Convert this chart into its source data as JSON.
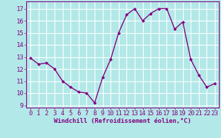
{
  "x": [
    0,
    1,
    2,
    3,
    4,
    5,
    6,
    7,
    8,
    9,
    10,
    11,
    12,
    13,
    14,
    15,
    16,
    17,
    18,
    19,
    20,
    21,
    22,
    23
  ],
  "y": [
    12.9,
    12.4,
    12.5,
    12.0,
    11.0,
    10.5,
    10.1,
    10.0,
    9.2,
    11.3,
    12.8,
    15.0,
    16.5,
    17.0,
    16.0,
    16.6,
    17.0,
    17.0,
    15.3,
    15.9,
    12.8,
    11.5,
    10.5,
    10.8
  ],
  "line_color": "#800080",
  "marker": "D",
  "marker_size": 2.0,
  "background_color": "#b3e8e8",
  "grid_color": "#ffffff",
  "xlabel": "Windchill (Refroidissement éolien,°C)",
  "xlabel_color": "#800080",
  "tick_color": "#800080",
  "label_color": "#800080",
  "ylim": [
    8.8,
    17.6
  ],
  "xlim": [
    -0.5,
    23.5
  ],
  "yticks": [
    9,
    10,
    11,
    12,
    13,
    14,
    15,
    16,
    17
  ],
  "xticks": [
    0,
    1,
    2,
    3,
    4,
    5,
    6,
    7,
    8,
    9,
    10,
    11,
    12,
    13,
    14,
    15,
    16,
    17,
    18,
    19,
    20,
    21,
    22,
    23
  ],
  "line_width": 1.0,
  "tick_fontsize": 6.5,
  "xlabel_fontsize": 6.5
}
